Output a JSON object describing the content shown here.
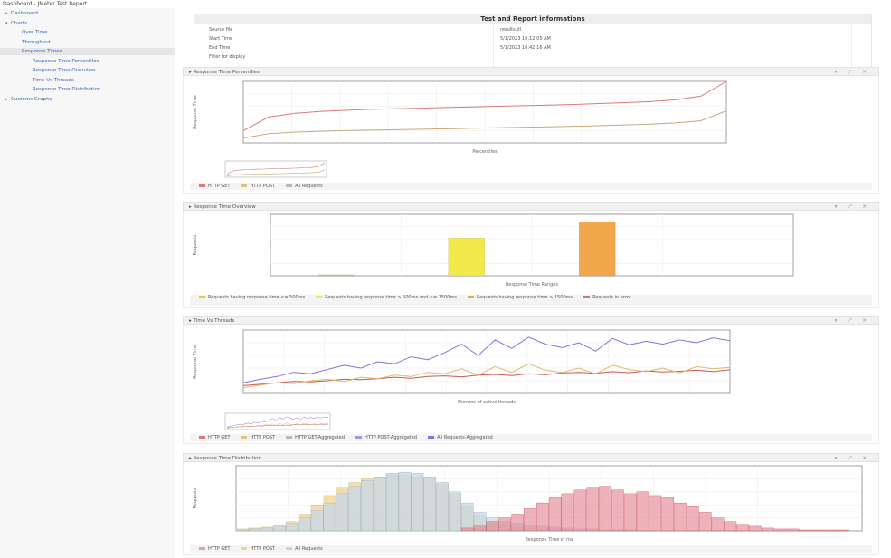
{
  "topbar": {
    "title": "Dashboard - JMeter Test Report"
  },
  "sidebar": {
    "items": [
      {
        "label": "Dashboard",
        "level": 0,
        "toggle": "▸"
      },
      {
        "label": "Charts",
        "level": 0,
        "toggle": "▾"
      },
      {
        "label": "Over Time",
        "level": 1,
        "toggle": ""
      },
      {
        "label": "Throughput",
        "level": 1,
        "toggle": ""
      },
      {
        "label": "Response Times",
        "level": 1,
        "toggle": "",
        "active": true
      },
      {
        "label": "Response Time Percentiles",
        "level": 2,
        "toggle": ""
      },
      {
        "label": "Response Time Overview",
        "level": 2,
        "toggle": ""
      },
      {
        "label": "Time Vs Threads",
        "level": 2,
        "toggle": ""
      },
      {
        "label": "Response Time Distribution",
        "level": 2,
        "toggle": ""
      },
      {
        "label": "Customs Graphs",
        "level": 0,
        "toggle": "▸"
      }
    ]
  },
  "summary": {
    "title": "Test and Report informations",
    "left": [
      "Source file",
      "Start Time",
      "End Time",
      "Filter for display"
    ],
    "right": [
      "results.jtl",
      "5/1/2023 10:12:05 AM",
      "5/1/2023 10:42:16 AM",
      ""
    ]
  },
  "panels": {
    "percentiles": {
      "title": "Response Time Percentiles",
      "legend": [
        {
          "label": "HTTP GET",
          "color": "#d97b7b"
        },
        {
          "label": "HTTP POST",
          "color": "#e0c27a"
        },
        {
          "label": "All Requests",
          "color": "#b8b8b8"
        }
      ]
    },
    "overview": {
      "title": "Response Time Overview",
      "legend": [
        {
          "label": "Requests having response time <= 500ms",
          "color": "#e6c84a"
        },
        {
          "label": "Requests having response time > 500ms and <= 1500ms",
          "color": "#f2e94a"
        },
        {
          "label": "Requests having response time > 1500ms",
          "color": "#f0a84a"
        },
        {
          "label": "Requests in error",
          "color": "#d96f6f"
        }
      ]
    },
    "threads": {
      "title": "Time Vs Threads",
      "legend": [
        {
          "label": "HTTP GET",
          "color": "#d97b7b"
        },
        {
          "label": "HTTP POST",
          "color": "#e0c27a"
        },
        {
          "label": "HTTP GET-Aggregated",
          "color": "#b8b8b8"
        },
        {
          "label": "HTTP POST-Aggregated",
          "color": "#9a9adf"
        },
        {
          "label": "All Requests-Aggregated",
          "color": "#8d6fe0"
        }
      ]
    },
    "distribution": {
      "title": "Response Time Distribution",
      "legend": [
        {
          "label": "HTTP GET",
          "color": "#e6a0a8"
        },
        {
          "label": "HTTP POST",
          "color": "#f0d290"
        },
        {
          "label": "All Requests",
          "color": "#c6d8e8"
        }
      ]
    }
  },
  "chart_data": [
    {
      "type": "line",
      "title": "",
      "xlabel": "Percentiles",
      "ylabel": "Response Time",
      "series": [
        {
          "name": "HTTP GET",
          "values": [
            200,
            420,
            480,
            510,
            530,
            545,
            555,
            565,
            575,
            585,
            595,
            605,
            615,
            625,
            640,
            655,
            670,
            700,
            760,
            1000
          ]
        },
        {
          "name": "HTTP POST",
          "values": [
            80,
            150,
            175,
            190,
            200,
            208,
            215,
            222,
            230,
            238,
            246,
            254,
            262,
            270,
            280,
            292,
            305,
            325,
            360,
            520
          ]
        }
      ],
      "ylim": [
        0,
        1000
      ]
    },
    {
      "type": "bar",
      "title": "",
      "xlabel": "Response Time Ranges",
      "ylabel": "Requests",
      "categories": [
        "",
        "",
        "",
        ""
      ],
      "values": [
        120,
        4300,
        6100,
        0
      ],
      "ylim": [
        0,
        7000
      ]
    },
    {
      "type": "line",
      "title": "",
      "xlabel": "Number of active threads",
      "ylabel": "Response Time",
      "series": [
        {
          "name": "HTTP GET",
          "values": [
            110,
            130,
            150,
            170,
            165,
            180,
            200,
            195,
            210,
            230,
            215,
            240,
            250,
            235,
            260,
            270,
            255,
            280,
            265,
            290,
            300,
            285,
            310,
            295,
            320,
            305,
            315,
            330,
            310,
            335
          ]
        },
        {
          "name": "HTTP POST",
          "values": [
            80,
            120,
            150,
            140,
            180,
            200,
            170,
            230,
            210,
            260,
            240,
            300,
            280,
            350,
            260,
            380,
            300,
            420,
            330,
            300,
            360,
            280,
            400,
            340,
            310,
            360,
            290,
            380,
            350,
            370
          ]
        },
        {
          "name": "All Requests-Aggregated",
          "values": [
            150,
            200,
            240,
            300,
            280,
            340,
            400,
            360,
            450,
            420,
            520,
            480,
            580,
            700,
            540,
            760,
            640,
            800,
            700,
            650,
            720,
            600,
            780,
            690,
            740,
            700,
            760,
            720,
            790,
            750
          ]
        }
      ],
      "ylim": [
        0,
        900
      ]
    },
    {
      "type": "bar",
      "title": "",
      "xlabel": "Response Time in ms",
      "ylabel": "Requests",
      "series": [
        {
          "name": "HTTP POST",
          "values": [
            2,
            3,
            4,
            6,
            10,
            18,
            28,
            38,
            46,
            52,
            56,
            58,
            60,
            60,
            58,
            56,
            50,
            40,
            26,
            16,
            10,
            6,
            4,
            3,
            2,
            2,
            1,
            1,
            1,
            0,
            0,
            0,
            0,
            0,
            0,
            0,
            0,
            0,
            0,
            0,
            0,
            0,
            0,
            0,
            0,
            0,
            0,
            0,
            0,
            0
          ]
        },
        {
          "name": "All Requests",
          "values": [
            1,
            2,
            3,
            5,
            8,
            14,
            22,
            30,
            40,
            48,
            54,
            58,
            62,
            63,
            62,
            58,
            52,
            42,
            30,
            20,
            14,
            10,
            8,
            6,
            5,
            4,
            3,
            2,
            2,
            1,
            1,
            1,
            0,
            0,
            0,
            0,
            0,
            0,
            0,
            0,
            0,
            0,
            0,
            0,
            0,
            0,
            0,
            0,
            0,
            0
          ]
        },
        {
          "name": "HTTP GET",
          "values": [
            0,
            0,
            0,
            0,
            0,
            0,
            0,
            0,
            0,
            0,
            0,
            0,
            0,
            0,
            0,
            0,
            0,
            0,
            3,
            6,
            10,
            14,
            18,
            24,
            30,
            36,
            40,
            44,
            46,
            48,
            44,
            40,
            42,
            38,
            36,
            30,
            26,
            20,
            14,
            10,
            7,
            5,
            3,
            2,
            2,
            1,
            1,
            1,
            1,
            0
          ]
        }
      ],
      "ylim": [
        0,
        70
      ]
    }
  ]
}
